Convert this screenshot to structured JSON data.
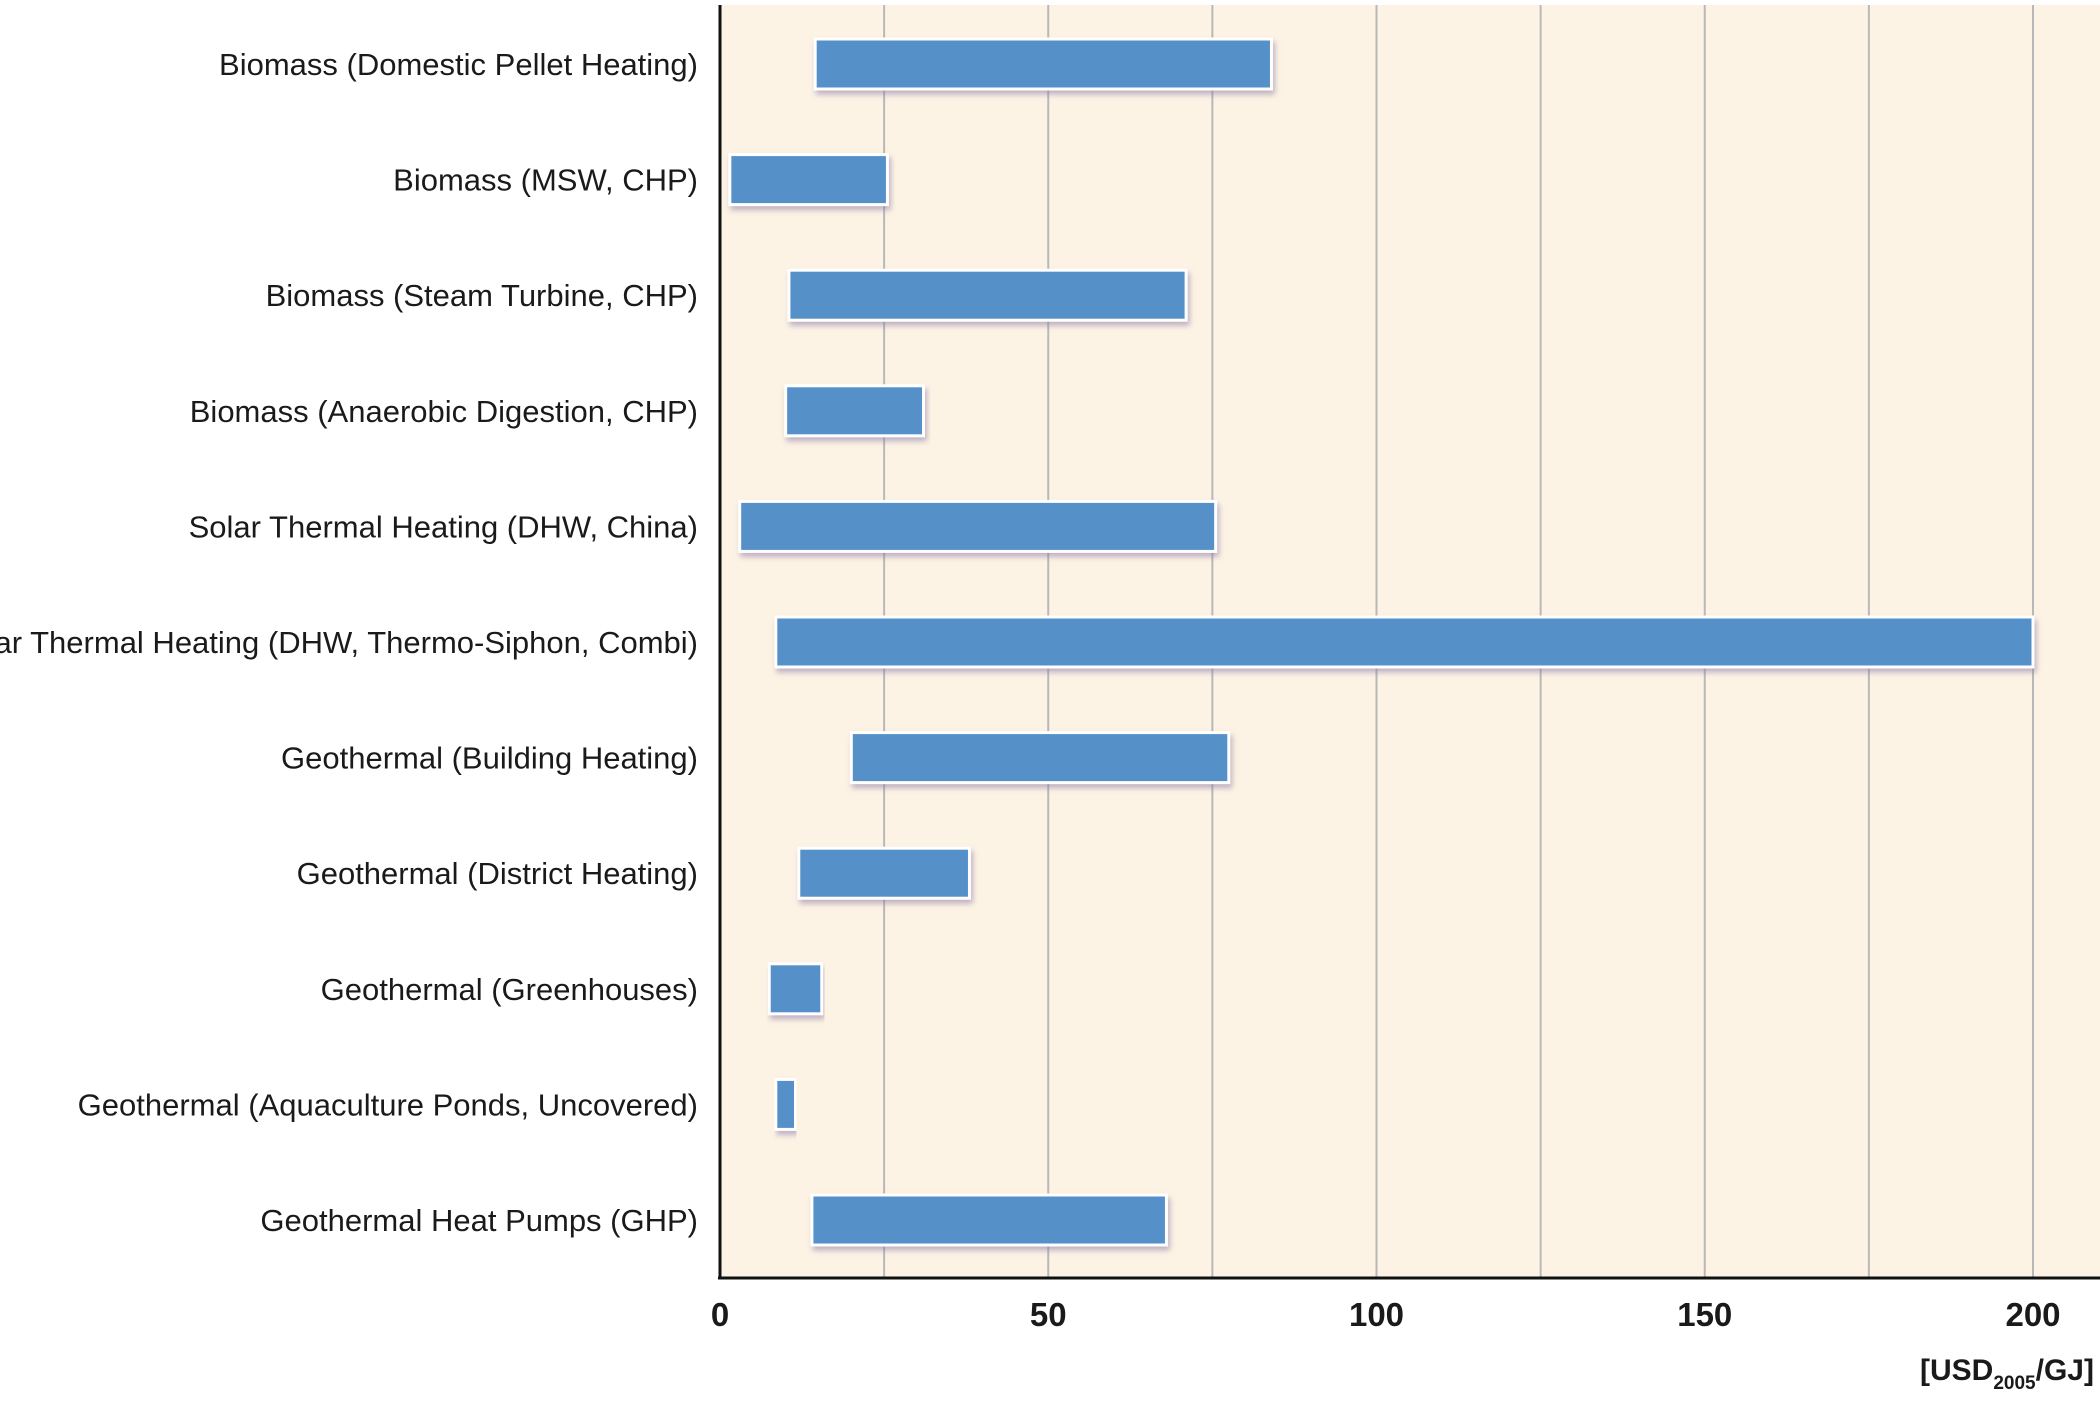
{
  "chart_data": {
    "type": "bar",
    "orientation": "horizontal",
    "range_bars": true,
    "categories": [
      "Biomass (Domestic Pellet Heating)",
      "Biomass (MSW, CHP)",
      "Biomass (Steam Turbine, CHP)",
      "Biomass (Anaerobic Digestion, CHP)",
      "Solar Thermal Heating (DHW, China)",
      "Solar Thermal Heating (DHW, Thermo-Siphon, Combi)",
      "Geothermal (Building Heating)",
      "Geothermal (District Heating)",
      "Geothermal (Greenhouses)",
      "Geothermal (Aquaculture Ponds, Uncovered)",
      "Geothermal Heat Pumps (GHP)"
    ],
    "ranges": [
      [
        14.5,
        84
      ],
      [
        1.5,
        25.5
      ],
      [
        10.5,
        71
      ],
      [
        10,
        31
      ],
      [
        3,
        75.5
      ],
      [
        8.5,
        200
      ],
      [
        20,
        77.5
      ],
      [
        12,
        38
      ],
      [
        7.5,
        15.5
      ],
      [
        8.5,
        11.5
      ],
      [
        14,
        68
      ]
    ],
    "xlim": [
      0,
      210
    ],
    "xticks": [
      0,
      50,
      100,
      150,
      200
    ],
    "xlabel_prefix": "[USD",
    "xlabel_sub": "2005",
    "xlabel_suffix": "/GJ]",
    "grid": "vertical",
    "colors": {
      "bar": "#5590c8",
      "bar_border": "#ffffff",
      "plot_bg": "#fdf3e4",
      "grid": "#b8b8b8",
      "axis": "#111111"
    }
  }
}
